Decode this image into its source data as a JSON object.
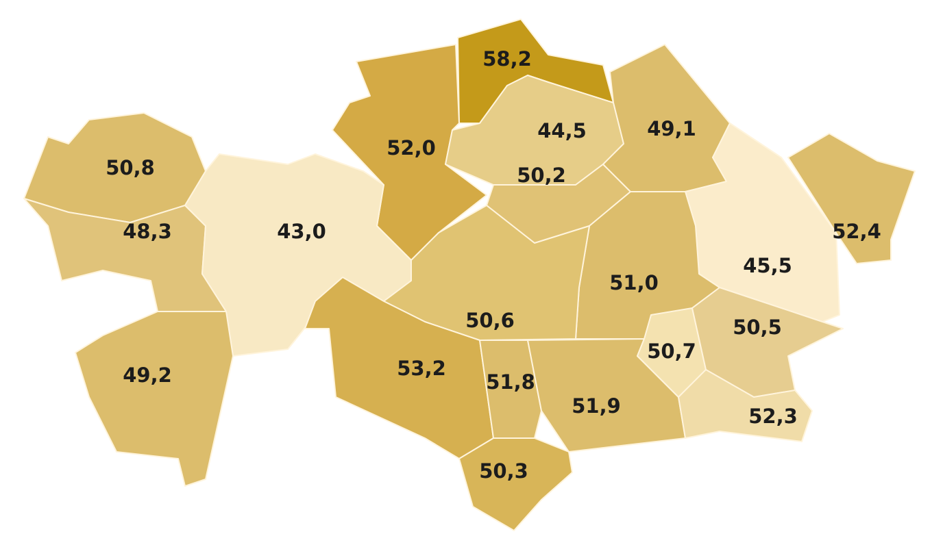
{
  "map": {
    "regions": [
      {
        "label": "58,2",
        "value": 58.2,
        "color": "#c49a1a"
      },
      {
        "label": "52,0",
        "value": 52.0,
        "color": "#d4aa45"
      },
      {
        "label": "44,5",
        "value": 44.5,
        "color": "#e6cd88"
      },
      {
        "label": "50,2",
        "value": 50.2,
        "color": "#e0c275"
      },
      {
        "label": "49,1",
        "value": 49.1,
        "color": "#dcbd6c"
      },
      {
        "label": "50,8",
        "value": 50.8,
        "color": "#dcbd6c"
      },
      {
        "label": "48,3",
        "value": 48.3,
        "color": "#e0c37a"
      },
      {
        "label": "43,0",
        "value": 43.0,
        "color": "#f8e9c4"
      },
      {
        "label": "49,2",
        "value": 49.2,
        "color": "#dcbd6c"
      },
      {
        "label": "52,4",
        "value": 52.4,
        "color": "#dcbd6c"
      },
      {
        "label": "45,5",
        "value": 45.5,
        "color": "#fbeccb"
      },
      {
        "label": "51,0",
        "value": 51.0,
        "color": "#dcbd6c"
      },
      {
        "label": "50,6",
        "value": 50.6,
        "color": "#e0c372"
      },
      {
        "label": "53,2",
        "value": 53.2,
        "color": "#d6b050"
      },
      {
        "label": "51,8",
        "value": 51.8,
        "color": "#dcbd6c"
      },
      {
        "label": "51,9",
        "value": 51.9,
        "color": "#dcbd6c"
      },
      {
        "label": "50,3",
        "value": 50.3,
        "color": "#d8b558"
      },
      {
        "label": "50,7",
        "value": 50.7,
        "color": "#f4e2b0"
      },
      {
        "label": "50,5",
        "value": 50.5,
        "color": "#e6cd90"
      },
      {
        "label": "52,3",
        "value": 52.3,
        "color": "#f0dca8"
      }
    ]
  }
}
